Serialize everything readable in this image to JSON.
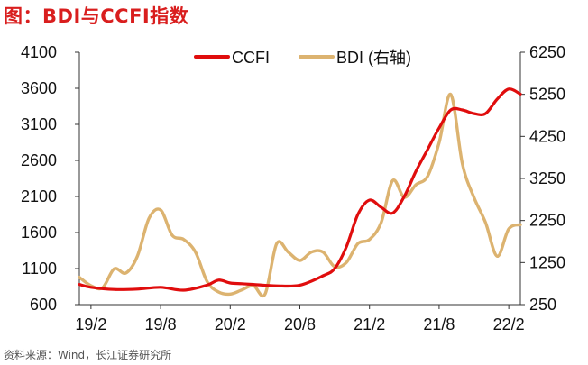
{
  "title": "图：BDI与CCFI指数",
  "source": "资料来源：Wind，长江证券研究所",
  "colors": {
    "ccfi": "#e00d0d",
    "bdi": "#dcb370",
    "axis": "#333333"
  },
  "chart_data": {
    "type": "line",
    "x_ticks": [
      "19/2",
      "19/8",
      "20/2",
      "20/8",
      "21/2",
      "21/8",
      "22/2"
    ],
    "x_range": [
      "2019-01",
      "2022-03"
    ],
    "y_left": {
      "ticks": [
        600,
        1100,
        1600,
        2100,
        2600,
        3100,
        3600,
        4100
      ],
      "range": [
        600,
        4100
      ]
    },
    "y_right": {
      "ticks": [
        250,
        1250,
        2250,
        3250,
        4250,
        5250,
        6250
      ],
      "range": [
        250,
        6250
      ]
    },
    "legend_placement": "top-center",
    "series": [
      {
        "name": "CCFI",
        "axis": "left",
        "x": [
          "2019-01",
          "2019-02",
          "2019-04",
          "2019-06",
          "2019-08",
          "2019-10",
          "2019-12",
          "2020-01",
          "2020-02",
          "2020-03",
          "2020-04",
          "2020-06",
          "2020-08",
          "2020-10",
          "2020-11",
          "2020-12",
          "2021-01",
          "2021-02",
          "2021-03",
          "2021-04",
          "2021-05",
          "2021-06",
          "2021-07",
          "2021-08",
          "2021-09",
          "2021-10",
          "2021-11",
          "2021-12",
          "2022-01",
          "2022-02",
          "2022-03"
        ],
        "values": [
          880,
          840,
          810,
          815,
          840,
          800,
          870,
          940,
          900,
          890,
          880,
          860,
          870,
          1000,
          1100,
          1400,
          1850,
          2050,
          1950,
          1870,
          2100,
          2450,
          2750,
          3050,
          3300,
          3300,
          3250,
          3250,
          3450,
          3590,
          3520
        ]
      },
      {
        "name": "BDI (右轴)",
        "axis": "right",
        "x": [
          "2019-01",
          "2019-02",
          "2019-03",
          "2019-04",
          "2019-05",
          "2019-06",
          "2019-07",
          "2019-08",
          "2019-09",
          "2019-10",
          "2019-11",
          "2019-12",
          "2020-01",
          "2020-02",
          "2020-03",
          "2020-04",
          "2020-05",
          "2020-06",
          "2020-07",
          "2020-08",
          "2020-09",
          "2020-10",
          "2020-11",
          "2020-12",
          "2021-01",
          "2021-02",
          "2021-03",
          "2021-04",
          "2021-05",
          "2021-06",
          "2021-07",
          "2021-08",
          "2021-09",
          "2021-10",
          "2021-11",
          "2021-12",
          "2022-01",
          "2022-02",
          "2022-03"
        ],
        "values": [
          900,
          700,
          650,
          1100,
          1000,
          1400,
          2300,
          2500,
          1900,
          1800,
          1500,
          800,
          550,
          500,
          600,
          700,
          500,
          1700,
          1500,
          1300,
          1500,
          1500,
          1150,
          1250,
          1700,
          1800,
          2200,
          3200,
          2800,
          3100,
          3300,
          4100,
          5250,
          3600,
          2800,
          2200,
          1400,
          2050,
          2150
        ]
      }
    ]
  }
}
